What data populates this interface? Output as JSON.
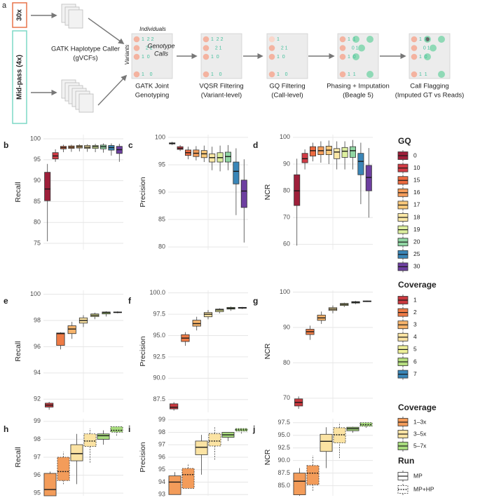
{
  "diagram": {
    "panel": "a",
    "inputs": [
      "30x",
      "Mid-pass (4x)"
    ],
    "caller": [
      "GATK Haplotype Caller",
      "(gVCFs)"
    ],
    "matrix_labels": {
      "columns": "Individuals",
      "rows": "Variants",
      "cells": [
        "Genotype",
        "Calls"
      ]
    },
    "steps": [
      {
        "label": [
          "GATK Joint",
          "Genotyping"
        ],
        "digits": [
          "1  2 2",
          "   2 1",
          "1  0",
          null,
          "1    0"
        ]
      },
      {
        "label": [
          "VQSR Filtering",
          "(Variant-level)"
        ],
        "digits": [
          "1  2 2",
          "   2 1",
          "1  0",
          null,
          "1    0"
        ]
      },
      {
        "label": [
          "GQ Filtering",
          "(Call-level)"
        ],
        "digits": [
          "1",
          "   2 1",
          "1  0",
          null,
          "1    0"
        ]
      },
      {
        "label": [
          "Phasing + Imputation",
          "(Beagle 5)"
        ],
        "digits": [
          "1  1",
          "   0 1",
          "1  0",
          null,
          "1  1"
        ]
      },
      {
        "label": [
          "Call Flagging",
          "(Imputed GT vs Reads)"
        ],
        "digits": [
          "1  1",
          "   0 1",
          "1  0",
          null,
          "1  1"
        ]
      }
    ]
  },
  "chart_data": [
    {
      "type": "box",
      "panel": "b",
      "ylabel": "Recall",
      "ylim": [
        73.5,
        101
      ],
      "yticks": [
        75,
        80,
        85,
        90,
        95,
        100
      ],
      "grid": true,
      "boxes": [
        {
          "whislo": 75.5,
          "q1": 85.2,
          "med": 88,
          "q3": 92,
          "whishi": 94
        },
        {
          "whislo": 94.5,
          "q1": 95.2,
          "med": 95.9,
          "q3": 96.7,
          "whishi": 97.5
        },
        {
          "whislo": 96.8,
          "q1": 97.6,
          "med": 97.9,
          "q3": 98.2,
          "whishi": 98.6
        },
        {
          "whislo": 96.9,
          "q1": 97.7,
          "med": 98,
          "q3": 98.3,
          "whishi": 98.6
        },
        {
          "whislo": 97,
          "q1": 97.8,
          "med": 98.1,
          "q3": 98.4,
          "whishi": 98.7
        },
        {
          "whislo": 96.9,
          "q1": 97.7,
          "med": 98,
          "q3": 98.4,
          "whishi": 98.7
        },
        {
          "whislo": 96.8,
          "q1": 97.7,
          "med": 98.1,
          "q3": 98.4,
          "whishi": 98.8
        },
        {
          "whislo": 96.7,
          "q1": 97.6,
          "med": 98.1,
          "q3": 98.5,
          "whishi": 98.9
        },
        {
          "whislo": 96,
          "q1": 97.3,
          "med": 97.9,
          "q3": 98.4,
          "whishi": 98.9
        },
        {
          "whislo": 94.5,
          "q1": 96.5,
          "med": 97.4,
          "q3": 98.2,
          "whishi": 98.8
        }
      ]
    },
    {
      "type": "box",
      "panel": "c",
      "ylabel": "Precision",
      "ylim": [
        79.5,
        100.5
      ],
      "yticks": [
        80,
        85,
        90,
        95,
        100
      ],
      "grid": true,
      "boxes": [
        {
          "whislo": 98.6,
          "q1": 98.8,
          "med": 98.9,
          "q3": 99,
          "whishi": 99.2
        },
        {
          "whislo": 97.5,
          "q1": 97.8,
          "med": 98,
          "q3": 98.3,
          "whishi": 98.6
        },
        {
          "whislo": 96,
          "q1": 96.7,
          "med": 97.2,
          "q3": 97.7,
          "whishi": 98.3
        },
        {
          "whislo": 95.8,
          "q1": 96.5,
          "med": 97.1,
          "q3": 97.7,
          "whishi": 98.4
        },
        {
          "whislo": 95.5,
          "q1": 96.3,
          "med": 97,
          "q3": 97.6,
          "whishi": 98.5
        },
        {
          "whislo": 94,
          "q1": 95.5,
          "med": 96.3,
          "q3": 97,
          "whishi": 98.3
        },
        {
          "whislo": 93.8,
          "q1": 95.5,
          "med": 96.3,
          "q3": 97.2,
          "whishi": 98.5
        },
        {
          "whislo": 94,
          "q1": 95.5,
          "med": 96.5,
          "q3": 97.3,
          "whishi": 98.6
        },
        {
          "whislo": 85.8,
          "q1": 91.5,
          "med": 93.8,
          "q3": 95.5,
          "whishi": 98
        },
        {
          "whislo": 80.8,
          "q1": 87.2,
          "med": 90.2,
          "q3": 92.2,
          "whishi": 96
        }
      ]
    },
    {
      "type": "box",
      "panel": "d",
      "ylabel": "NCR",
      "ylim": [
        58,
        101
      ],
      "yticks": [
        60,
        70,
        80,
        90,
        100
      ],
      "grid": true,
      "boxes": [
        {
          "whislo": 59.5,
          "q1": 74.5,
          "med": 80,
          "q3": 86,
          "whishi": 92
        },
        {
          "whislo": 88,
          "q1": 90.5,
          "med": 92,
          "q3": 94,
          "whishi": 95.5
        },
        {
          "whislo": 91,
          "q1": 93,
          "med": 95,
          "q3": 96.5,
          "whishi": 98
        },
        {
          "whislo": 90.5,
          "q1": 93.5,
          "med": 95,
          "q3": 96.5,
          "whishi": 98.5
        },
        {
          "whislo": 90,
          "q1": 93.5,
          "med": 95.2,
          "q3": 96.7,
          "whishi": 98.8
        },
        {
          "whislo": 88,
          "q1": 92,
          "med": 94.5,
          "q3": 95.8,
          "whishi": 98.5
        },
        {
          "whislo": 88,
          "q1": 92.5,
          "med": 94.8,
          "q3": 96.2,
          "whishi": 98.5
        },
        {
          "whislo": 88,
          "q1": 92.5,
          "med": 95,
          "q3": 96.5,
          "whishi": 99
        },
        {
          "whislo": 75,
          "q1": 86,
          "med": 91,
          "q3": 94,
          "whishi": 98
        },
        {
          "whislo": 70,
          "q1": 80,
          "med": 85,
          "q3": 89.5,
          "whishi": 96
        }
      ]
    },
    {
      "type": "box",
      "panel": "e",
      "ylabel": "Recall",
      "ylim": [
        91,
        100.3
      ],
      "yticks": [
        92,
        94,
        96,
        98,
        100
      ],
      "grid": true,
      "boxes": [
        {
          "whislo": 91.2,
          "q1": 91.4,
          "med": 91.55,
          "q3": 91.7,
          "whishi": 91.8
        },
        {
          "whislo": 95.8,
          "q1": 96.1,
          "med": 97,
          "q3": 97.05,
          "whishi": 97.1
        },
        {
          "whislo": 96.6,
          "q1": 97,
          "med": 97.35,
          "q3": 97.6,
          "whishi": 97.9
        },
        {
          "whislo": 97.5,
          "q1": 97.8,
          "med": 98,
          "q3": 98.2,
          "whishi": 98.4
        },
        {
          "whislo": 98.1,
          "q1": 98.3,
          "med": 98.4,
          "q3": 98.5,
          "whishi": 98.6
        },
        {
          "whislo": 98.3,
          "q1": 98.5,
          "med": 98.6,
          "q3": 98.65,
          "whishi": 98.7
        },
        {
          "whislo": 98.55,
          "q1": 98.6,
          "med": 98.62,
          "q3": 98.65,
          "whishi": 98.7
        }
      ]
    },
    {
      "type": "box",
      "panel": "f",
      "ylabel": "Precision",
      "ylim": [
        86,
        100.3
      ],
      "yticks": [
        87.5,
        {
          "value": 90,
          "label": "90.0"
        },
        92.5,
        {
          "value": 95,
          "label": "95.0"
        },
        97.5,
        {
          "value": 100,
          "label": "100.0"
        }
      ],
      "grid": true,
      "boxes": [
        {
          "whislo": 86.2,
          "q1": 86.4,
          "med": 86.6,
          "q3": 87,
          "whishi": 87.2
        },
        {
          "whislo": 93.8,
          "q1": 94.3,
          "med": 94.7,
          "q3": 95.1,
          "whishi": 95.4
        },
        {
          "whislo": 95.6,
          "q1": 96.1,
          "med": 96.4,
          "q3": 96.8,
          "whishi": 97.2
        },
        {
          "whislo": 96.9,
          "q1": 97.2,
          "med": 97.5,
          "q3": 97.7,
          "whishi": 98
        },
        {
          "whislo": 97.6,
          "q1": 97.8,
          "med": 98,
          "q3": 98.1,
          "whishi": 98.2
        },
        {
          "whislo": 97.9,
          "q1": 98.1,
          "med": 98.2,
          "q3": 98.3,
          "whishi": 98.4
        },
        {
          "whislo": 98.1,
          "q1": 98.2,
          "med": 98.25,
          "q3": 98.3,
          "whishi": 98.35
        }
      ]
    },
    {
      "type": "box",
      "panel": "g",
      "ylabel": "NCR",
      "ylim": [
        66,
        100.5
      ],
      "yticks": [
        70,
        80,
        90,
        100
      ],
      "grid": true,
      "boxes": [
        {
          "whislo": 67,
          "q1": 67.8,
          "med": 68.8,
          "q3": 69.8,
          "whishi": 70.5
        },
        {
          "whislo": 86.5,
          "q1": 88,
          "med": 88.8,
          "q3": 89.5,
          "whishi": 90.5
        },
        {
          "whislo": 91,
          "q1": 92,
          "med": 92.7,
          "q3": 93.5,
          "whishi": 94.5
        },
        {
          "whislo": 94,
          "q1": 94.8,
          "med": 95.2,
          "q3": 95.6,
          "whishi": 96.2
        },
        {
          "whislo": 95.8,
          "q1": 96.2,
          "med": 96.5,
          "q3": 96.8,
          "whishi": 97
        },
        {
          "whislo": 96.6,
          "q1": 96.9,
          "med": 97.1,
          "q3": 97.3,
          "whishi": 97.5
        },
        {
          "whislo": 97.2,
          "q1": 97.3,
          "med": 97.4,
          "q3": 97.5,
          "whishi": 97.6
        }
      ]
    },
    {
      "type": "box",
      "panel": "h",
      "ylabel": "Recall",
      "ylim": [
        94.85,
        99.15
      ],
      "yticks": [
        95,
        96,
        97,
        98,
        99
      ],
      "grid": true,
      "boxes": [
        {
          "whislo": 94.85,
          "q1": 94.85,
          "med": 95.2,
          "q3": 96.1,
          "whishi": 96.2
        },
        {
          "whislo": 95.5,
          "q1": 95.7,
          "med": 96.2,
          "q3": 97,
          "whishi": 97.3
        },
        {
          "whislo": 95.5,
          "q1": 96.8,
          "med": 97.2,
          "q3": 97.7,
          "whishi": 98.3
        },
        {
          "whislo": 96.7,
          "q1": 97.6,
          "med": 97.9,
          "q3": 98.3,
          "whishi": 98.6
        },
        {
          "whislo": 97.7,
          "q1": 98,
          "med": 98.2,
          "q3": 98.3,
          "whishi": 98.5
        },
        {
          "whislo": 98.2,
          "q1": 98.4,
          "med": 98.5,
          "q3": 98.7,
          "whishi": 98.7
        }
      ]
    },
    {
      "type": "box",
      "panel": "i",
      "ylabel": "Precision",
      "ylim": [
        92.9,
        99.1
      ],
      "yticks": [
        93,
        94,
        95,
        96,
        97,
        98,
        99
      ],
      "grid": true,
      "boxes": [
        {
          "whislo": 93,
          "q1": 93,
          "med": 94,
          "q3": 94.5,
          "whishi": 94.8
        },
        {
          "whislo": 93.5,
          "q1": 93.5,
          "med": 94.6,
          "q3": 95.1,
          "whishi": 95.5
        },
        {
          "whislo": 94.6,
          "q1": 96.2,
          "med": 96.8,
          "q3": 97.3,
          "whishi": 97.8
        },
        {
          "whislo": 95.8,
          "q1": 96.9,
          "med": 97.3,
          "q3": 97.9,
          "whishi": 98.4
        },
        {
          "whislo": 97.3,
          "q1": 97.6,
          "med": 97.8,
          "q3": 98,
          "whishi": 98
        },
        {
          "whislo": 97.9,
          "q1": 98.1,
          "med": 98.2,
          "q3": 98.3,
          "whishi": 98.3
        }
      ]
    },
    {
      "type": "box",
      "panel": "j",
      "ylabel": "NCR",
      "ylim": [
        83,
        98.3
      ],
      "yticks": [
        {
          "value": 85,
          "label": "85.0"
        },
        87.5,
        {
          "value": 90,
          "label": "90.0"
        },
        92.5,
        {
          "value": 95,
          "label": "95.0"
        },
        97.5
      ],
      "grid": true,
      "boxes": [
        {
          "whislo": 83,
          "q1": 83.2,
          "med": 85.9,
          "q3": 87.5,
          "whishi": 88.5
        },
        {
          "whislo": 84,
          "q1": 85.2,
          "med": 87.5,
          "q3": 89,
          "whishi": 91
        },
        {
          "whislo": 88.5,
          "q1": 91.8,
          "med": 93.8,
          "q3": 95.2,
          "whishi": 96.6
        },
        {
          "whislo": 90.5,
          "q1": 93.5,
          "med": 95.1,
          "q3": 96.5,
          "whishi": 97.5
        },
        {
          "whislo": 95.5,
          "q1": 95.9,
          "med": 96.3,
          "q3": 96.6,
          "whishi": 96.7
        },
        {
          "whislo": 96.5,
          "q1": 96.8,
          "med": 97.1,
          "q3": 97.5,
          "whishi": 97.5
        }
      ]
    }
  ],
  "legends": [
    {
      "title": "GQ",
      "items": [
        {
          "name": "0",
          "color": "#9e1f3a"
        },
        {
          "name": "10",
          "color": "#d13b45"
        },
        {
          "name": "15",
          "color": "#ec6a40"
        },
        {
          "name": "16",
          "color": "#f59d5a"
        },
        {
          "name": "17",
          "color": "#f9c87a"
        },
        {
          "name": "18",
          "color": "#fbe8a6"
        },
        {
          "name": "19",
          "color": "#ddef9f"
        },
        {
          "name": "20",
          "color": "#90d5a3"
        },
        {
          "name": "25",
          "color": "#3a86b8"
        },
        {
          "name": "30",
          "color": "#6d3fa0"
        }
      ]
    },
    {
      "title": "Coverage",
      "items": [
        {
          "name": "1",
          "color": "#c9393f"
        },
        {
          "name": "2",
          "color": "#ee7b45"
        },
        {
          "name": "3",
          "color": "#f6b36b"
        },
        {
          "name": "4",
          "color": "#fbe3a3"
        },
        {
          "name": "5",
          "color": "#eef09a"
        },
        {
          "name": "6",
          "color": "#b5dd7f"
        },
        {
          "name": "7",
          "color": "#3a86b8"
        }
      ]
    },
    {
      "title": "Coverage",
      "items": [
        {
          "name": "1–3x",
          "color": "#f39c5a"
        },
        {
          "name": "3–5x",
          "color": "#fbe3a3"
        },
        {
          "name": "5–7x",
          "color": "#a8dc7e"
        }
      ]
    },
    {
      "title": "Run",
      "items": [
        {
          "name": "MP",
          "dashed": false
        },
        {
          "name": "MP+HP",
          "dashed": true
        }
      ]
    }
  ]
}
